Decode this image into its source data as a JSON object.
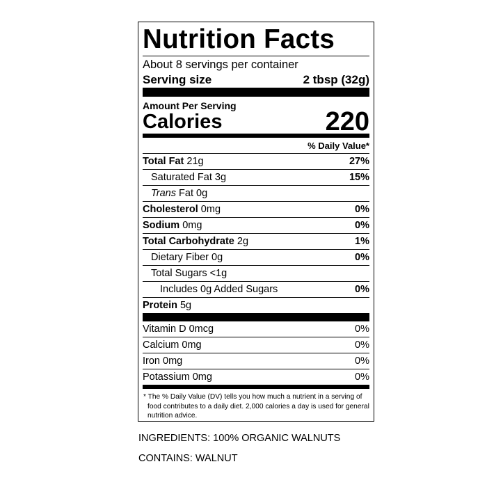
{
  "label": {
    "title": "Nutrition Facts",
    "servings_per_container": "About 8 servings per container",
    "serving_size_label": "Serving size",
    "serving_size_value": "2 tbsp (32g)",
    "amount_per_serving": "Amount Per Serving",
    "calories_label": "Calories",
    "calories_value": "220",
    "daily_value_header": "% Daily Value*",
    "nutrients": [
      {
        "name": "Total Fat",
        "amount": "21g",
        "dv": "27%"
      },
      {
        "name": "Saturated Fat",
        "amount": "3g",
        "dv": "15%"
      },
      {
        "name": "Trans",
        "name_suffix": "Fat",
        "amount": "0g",
        "dv": ""
      },
      {
        "name": "Cholesterol",
        "amount": "0mg",
        "dv": "0%"
      },
      {
        "name": "Sodium",
        "amount": "0mg",
        "dv": "0%"
      },
      {
        "name": "Total Carbohydrate",
        "amount": "2g",
        "dv": "1%"
      },
      {
        "name": "Dietary Fiber",
        "amount": "0g",
        "dv": "0%"
      },
      {
        "name": "Total Sugars",
        "amount": "<1g",
        "dv": ""
      },
      {
        "name": "Includes 0g Added Sugars",
        "amount": "",
        "dv": "0%"
      },
      {
        "name": "Protein",
        "amount": "5g",
        "dv": ""
      }
    ],
    "vitamins": [
      {
        "name": "Vitamin D 0mcg",
        "dv": "0%"
      },
      {
        "name": "Calcium 0mg",
        "dv": "0%"
      },
      {
        "name": "Iron 0mg",
        "dv": "0%"
      },
      {
        "name": "Potassium 0mg",
        "dv": "0%"
      }
    ],
    "footnote": "* The % Daily Value (DV) tells you how much a nutrient in a serving of food contributes to a daily diet. 2,000 calories a day is used for general nutrition advice."
  },
  "ingredients": "INGREDIENTS: 100% ORGANIC WALNUTS",
  "contains": "CONTAINS: WALNUT"
}
